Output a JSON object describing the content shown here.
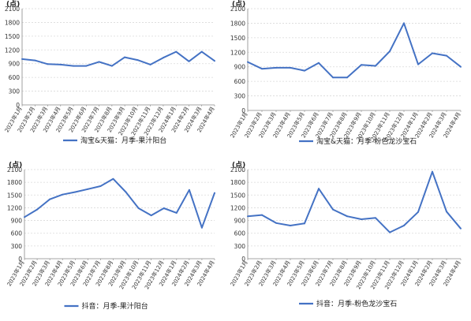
{
  "chart_data": [
    {
      "type": "line",
      "unit_label": "(点)",
      "categories": [
        "2023年1月",
        "2023年2月",
        "2023年3月",
        "2023年4月",
        "2023年5月",
        "2023年6月",
        "2023年7月",
        "2023年8月",
        "2023年9月",
        "2023年10月",
        "2023年11月",
        "2023年12月",
        "2024年1月",
        "2024年2月",
        "2024年3月",
        "2024年4月"
      ],
      "series": [
        {
          "name": "淘宝&天猫：月季-果汁阳台",
          "values": [
            1000,
            970,
            890,
            880,
            850,
            850,
            940,
            850,
            1040,
            980,
            880,
            1030,
            1160,
            950,
            1160,
            960
          ],
          "color": "#4472C4"
        }
      ],
      "ylim": [
        0,
        2100
      ],
      "yticks": [
        0,
        300,
        600,
        900,
        1200,
        1500,
        1800,
        2100
      ],
      "grid": true,
      "legend_position": "bottom"
    },
    {
      "type": "line",
      "unit_label": "(点)",
      "categories": [
        "2023年1月",
        "2023年2月",
        "2023年3月",
        "2023年4月",
        "2023年5月",
        "2023年6月",
        "2023年7月",
        "2023年8月",
        "2023年9月",
        "2023年10月",
        "2023年11月",
        "2023年12月",
        "2024年1月",
        "2024年2月",
        "2024年3月",
        "2024年4月"
      ],
      "series": [
        {
          "name": "淘宝&天猫：月季-粉色龙沙宝石",
          "values": [
            1000,
            860,
            880,
            880,
            820,
            980,
            680,
            680,
            940,
            920,
            1220,
            1800,
            950,
            1180,
            1130,
            900
          ],
          "color": "#4472C4"
        }
      ],
      "ylim": [
        0,
        2100
      ],
      "yticks": [
        0,
        300,
        600,
        900,
        1200,
        1500,
        1800,
        2100
      ],
      "grid": true,
      "legend_position": "bottom"
    },
    {
      "type": "line",
      "unit_label": "(点)",
      "categories": [
        "2023年1月",
        "2023年2月",
        "2023年3月",
        "2023年4月",
        "2023年5月",
        "2023年6月",
        "2023年7月",
        "2023年8月",
        "2023年9月",
        "2023年10月",
        "2023年11月",
        "2023年12月",
        "2024年1月",
        "2024年2月",
        "2024年3月",
        "2024年4月"
      ],
      "series": [
        {
          "name": "抖音：月季-果汁阳台",
          "values": [
            980,
            1160,
            1400,
            1510,
            1570,
            1640,
            1710,
            1880,
            1570,
            1190,
            1020,
            1190,
            1080,
            1620,
            730,
            1550
          ],
          "color": "#4472C4"
        }
      ],
      "ylim": [
        0,
        2100
      ],
      "yticks": [
        0,
        300,
        600,
        900,
        1200,
        1500,
        1800,
        2100
      ],
      "grid": true,
      "legend_position": "bottom"
    },
    {
      "type": "line",
      "unit_label": "(点)",
      "categories": [
        "2023年1月",
        "2023年2月",
        "2023年3月",
        "2023年4月",
        "2023年5月",
        "2023年6月",
        "2023年7月",
        "2023年8月",
        "2023年9月",
        "2023年10月",
        "2023年11月",
        "2023年12月",
        "2024年1月",
        "2024年2月",
        "2024年3月",
        "2024年4月"
      ],
      "series": [
        {
          "name": "抖音：月季-粉色龙沙宝石",
          "values": [
            1000,
            1030,
            840,
            780,
            830,
            1650,
            1160,
            1000,
            930,
            960,
            620,
            780,
            1100,
            2050,
            1110,
            710
          ],
          "color": "#4472C4"
        }
      ],
      "ylim": [
        0,
        2100
      ],
      "yticks": [
        0,
        300,
        600,
        900,
        1200,
        1500,
        1800,
        2100
      ],
      "grid": true,
      "legend_position": "bottom"
    }
  ]
}
